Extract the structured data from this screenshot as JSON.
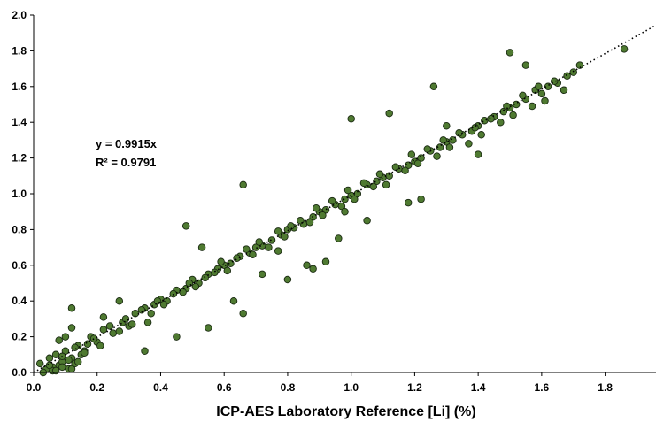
{
  "chart_data": {
    "type": "scatter",
    "xlabel": "ICP-AES Laboratory Reference [Li] (%)",
    "ylabel": "",
    "xlim": [
      0,
      1.96
    ],
    "ylim": [
      0,
      2.0
    ],
    "x_ticks": [
      "0.0",
      "0.2",
      "0.4",
      "0.6",
      "0.8",
      "1.0",
      "1.2",
      "1.4",
      "1.6",
      "1.8"
    ],
    "y_ticks": [
      "0.0",
      "0.2",
      "0.4",
      "0.6",
      "0.8",
      "1.0",
      "1.2",
      "1.4",
      "1.6",
      "1.8",
      "2.0"
    ],
    "grid": false,
    "trendline": {
      "slope": 0.9915,
      "intercept": 0,
      "style": "dotted"
    },
    "annotations": [
      "y = 0.9915x",
      "R² = 0.9791"
    ],
    "colors": {
      "marker_fill": "#4f7a31",
      "marker_edge": "#1a2a12",
      "trendline": "#000000"
    },
    "series": [
      {
        "x": [
          0.02,
          0.04,
          0.05,
          0.06,
          0.07,
          0.08,
          0.09,
          0.1,
          0.11,
          0.12,
          0.13,
          0.14,
          0.15,
          0.08,
          0.1,
          0.12,
          0.06,
          0.09,
          0.11,
          0.13,
          0.16,
          0.18,
          0.2,
          0.22,
          0.25,
          0.28,
          0.3,
          0.32,
          0.35,
          0.38,
          0.4,
          0.42,
          0.45,
          0.48,
          0.5,
          0.52,
          0.55,
          0.58,
          0.6,
          0.62,
          0.65,
          0.68,
          0.7,
          0.72,
          0.75,
          0.78,
          0.8,
          0.82,
          0.85,
          0.88,
          0.9,
          0.92,
          0.95,
          0.98,
          1.0,
          1.02,
          1.05,
          1.08,
          1.1,
          1.12,
          1.15,
          1.18,
          1.2,
          1.22,
          1.25,
          1.28,
          1.3,
          1.32,
          1.35,
          1.38,
          1.4,
          1.42,
          1.45,
          1.48,
          1.5,
          1.52,
          1.55,
          1.58,
          1.6,
          1.62,
          1.65,
          1.68,
          1.7,
          1.72,
          1.86,
          0.03,
          0.05,
          0.07,
          0.09,
          0.12,
          0.14,
          0.16,
          0.17,
          0.19,
          0.21,
          0.24,
          0.27,
          0.29,
          0.31,
          0.34,
          0.37,
          0.39,
          0.41,
          0.44,
          0.47,
          0.49,
          0.51,
          0.54,
          0.57,
          0.59,
          0.61,
          0.64,
          0.67,
          0.69,
          0.71,
          0.74,
          0.77,
          0.79,
          0.81,
          0.84,
          0.87,
          0.89,
          0.91,
          0.94,
          0.97,
          0.99,
          1.01,
          1.04,
          1.07,
          1.09,
          1.11,
          1.14,
          1.17,
          1.19,
          1.21,
          1.24,
          1.27,
          1.29,
          1.31,
          1.34,
          1.37,
          1.39,
          1.41,
          1.44,
          1.47,
          1.49,
          1.51,
          1.54,
          1.57,
          1.59,
          1.61,
          1.64,
          1.67,
          0.48,
          0.66,
          0.72,
          0.86,
          0.92,
          1.05,
          1.18,
          1.26,
          0.55,
          0.63,
          0.8,
          0.96,
          1.12,
          1.3,
          1.5,
          1.55,
          0.35,
          0.45,
          0.66,
          0.88,
          1.0,
          1.22,
          1.4,
          0.12,
          0.22,
          0.36,
          0.27,
          0.53,
          0.77,
          0.98
        ],
        "y": [
          0.05,
          0.02,
          0.08,
          0.03,
          0.1,
          0.04,
          0.06,
          0.12,
          0.02,
          0.08,
          0.05,
          0.15,
          0.1,
          0.18,
          0.2,
          0.25,
          0.01,
          0.03,
          0.07,
          0.14,
          0.12,
          0.2,
          0.17,
          0.24,
          0.22,
          0.28,
          0.26,
          0.33,
          0.36,
          0.38,
          0.41,
          0.4,
          0.46,
          0.47,
          0.52,
          0.5,
          0.55,
          0.58,
          0.6,
          0.61,
          0.65,
          0.67,
          0.7,
          0.71,
          0.74,
          0.77,
          0.8,
          0.81,
          0.83,
          0.87,
          0.9,
          0.91,
          0.94,
          0.97,
          0.99,
          1.0,
          1.05,
          1.07,
          1.09,
          1.1,
          1.14,
          1.16,
          1.18,
          1.2,
          1.24,
          1.26,
          1.29,
          1.3,
          1.33,
          1.35,
          1.38,
          1.41,
          1.43,
          1.46,
          1.48,
          1.5,
          1.53,
          1.58,
          1.56,
          1.6,
          1.62,
          1.66,
          1.68,
          1.72,
          1.81,
          0.0,
          0.04,
          0.01,
          0.09,
          0.02,
          0.06,
          0.11,
          0.16,
          0.19,
          0.15,
          0.26,
          0.23,
          0.3,
          0.27,
          0.35,
          0.33,
          0.4,
          0.38,
          0.44,
          0.45,
          0.5,
          0.48,
          0.53,
          0.56,
          0.62,
          0.57,
          0.64,
          0.69,
          0.66,
          0.73,
          0.7,
          0.79,
          0.76,
          0.82,
          0.85,
          0.84,
          0.92,
          0.88,
          0.96,
          0.93,
          1.02,
          0.97,
          1.06,
          1.04,
          1.11,
          1.05,
          1.15,
          1.13,
          1.22,
          1.17,
          1.25,
          1.21,
          1.3,
          1.26,
          1.34,
          1.28,
          1.37,
          1.33,
          1.42,
          1.4,
          1.49,
          1.44,
          1.55,
          1.49,
          1.6,
          1.52,
          1.63,
          1.58,
          0.82,
          1.05,
          0.55,
          0.6,
          0.62,
          0.85,
          0.95,
          1.6,
          0.25,
          0.4,
          0.52,
          0.75,
          1.45,
          1.38,
          1.79,
          1.72,
          0.12,
          0.2,
          0.33,
          0.58,
          1.42,
          0.97,
          1.22,
          0.36,
          0.31,
          0.28,
          0.4,
          0.7,
          0.68,
          0.9
        ]
      }
    ]
  }
}
